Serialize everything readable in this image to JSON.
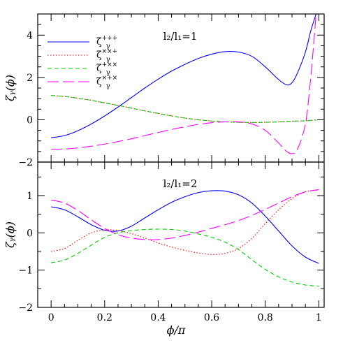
{
  "chart_data": [
    {
      "type": "line",
      "panel": "top",
      "annotation": "l₂/l₁=1",
      "xlabel": "",
      "ylabel": "ζᵧ(ϕ)",
      "xlim": [
        -0.05,
        1.02
      ],
      "ylim": [
        -2,
        5
      ],
      "yticks": [
        -2,
        0,
        2,
        4
      ],
      "ytick_labels": [
        "−2",
        "0",
        "2",
        "4"
      ],
      "legend_placement": "top-left",
      "x": [
        0,
        0.05,
        0.1,
        0.15,
        0.2,
        0.25,
        0.3,
        0.35,
        0.4,
        0.45,
        0.5,
        0.55,
        0.6,
        0.65,
        0.7,
        0.75,
        0.8,
        0.85,
        0.88,
        0.9,
        0.92,
        0.95,
        0.97,
        0.99
      ],
      "series": [
        {
          "name": "ζᵧ⁺⁺⁺",
          "color": "#0000ff",
          "dash": "solid",
          "values": [
            -0.85,
            -0.75,
            -0.52,
            -0.2,
            0.18,
            0.6,
            1.05,
            1.5,
            1.92,
            2.3,
            2.62,
            2.9,
            3.1,
            3.22,
            3.2,
            3.0,
            2.5,
            1.9,
            1.65,
            1.75,
            2.2,
            3.2,
            4.2,
            5.0
          ]
        },
        {
          "name": "ζᵧˣˣ⁺",
          "color": "#ff0000",
          "dash": "dotted",
          "values": [
            1.15,
            1.1,
            1.02,
            0.92,
            0.8,
            0.68,
            0.55,
            0.42,
            0.3,
            0.18,
            0.08,
            0.0,
            -0.06,
            -0.1,
            -0.12,
            -0.13,
            -0.12,
            -0.1,
            -0.08,
            -0.07,
            -0.06,
            -0.05,
            -0.03,
            -0.01
          ]
        },
        {
          "name": "ζᵧ⁺ˣˣ",
          "color": "#00cc00",
          "dash": "dashed",
          "values": [
            1.15,
            1.1,
            1.02,
            0.92,
            0.8,
            0.68,
            0.55,
            0.42,
            0.3,
            0.18,
            0.08,
            0.0,
            -0.06,
            -0.1,
            -0.12,
            -0.13,
            -0.12,
            -0.1,
            -0.08,
            -0.07,
            -0.06,
            -0.05,
            -0.03,
            -0.01
          ]
        },
        {
          "name": "ζᵧˣ⁺ˣ",
          "color": "#ff00ff",
          "dash": "longdash",
          "values": [
            -1.4,
            -1.38,
            -1.33,
            -1.25,
            -1.15,
            -1.03,
            -0.9,
            -0.75,
            -0.6,
            -0.46,
            -0.33,
            -0.22,
            -0.14,
            -0.1,
            -0.1,
            -0.2,
            -0.5,
            -1.1,
            -1.5,
            -1.6,
            -1.4,
            -0.2,
            2.0,
            5.0
          ]
        }
      ]
    },
    {
      "type": "line",
      "panel": "bottom",
      "annotation": "l₂/l₁=2",
      "xlabel": "ϕ/π",
      "ylabel": "ζᵧ(ϕ)",
      "xlim": [
        -0.05,
        1.02
      ],
      "ylim": [
        -2,
        1.9
      ],
      "xticks": [
        0,
        0.2,
        0.4,
        0.6,
        0.8,
        1
      ],
      "xtick_labels": [
        "0",
        "0.2",
        "0.4",
        "0.6",
        "0.8",
        "1"
      ],
      "yticks": [
        -2,
        -1,
        0,
        1
      ],
      "ytick_labels": [
        "−2",
        "−1",
        "0",
        "1"
      ],
      "x": [
        0,
        0.05,
        0.1,
        0.15,
        0.2,
        0.25,
        0.3,
        0.35,
        0.4,
        0.45,
        0.5,
        0.55,
        0.6,
        0.65,
        0.7,
        0.75,
        0.8,
        0.85,
        0.9,
        0.95,
        1.0
      ],
      "series": [
        {
          "name": "ζᵧ⁺⁺⁺",
          "color": "#0000ff",
          "dash": "solid",
          "values": [
            0.7,
            0.62,
            0.43,
            0.22,
            0.07,
            0.05,
            0.18,
            0.4,
            0.62,
            0.82,
            0.97,
            1.08,
            1.13,
            1.12,
            1.02,
            0.8,
            0.45,
            0.05,
            -0.35,
            -0.65,
            -0.82
          ]
        },
        {
          "name": "ζᵧˣˣ⁺",
          "color": "#ff0000",
          "dash": "dotted",
          "values": [
            -0.5,
            -0.42,
            -0.2,
            0.0,
            0.08,
            0.06,
            -0.02,
            -0.14,
            -0.27,
            -0.38,
            -0.47,
            -0.54,
            -0.58,
            -0.55,
            -0.42,
            -0.15,
            0.25,
            0.62,
            0.92,
            1.1,
            1.15
          ]
        },
        {
          "name": "ζᵧ⁺ˣˣ",
          "color": "#00cc00",
          "dash": "dashed",
          "values": [
            -0.8,
            -0.73,
            -0.55,
            -0.33,
            -0.12,
            0.0,
            0.06,
            0.09,
            0.1,
            0.09,
            0.05,
            -0.03,
            -0.12,
            -0.25,
            -0.45,
            -0.72,
            -0.98,
            -1.18,
            -1.32,
            -1.4,
            -1.43
          ]
        },
        {
          "name": "ζᵧˣ⁺ˣ",
          "color": "#ff00ff",
          "dash": "longdash",
          "values": [
            0.88,
            0.8,
            0.6,
            0.35,
            0.12,
            -0.05,
            -0.14,
            -0.18,
            -0.18,
            -0.14,
            -0.07,
            0.02,
            0.12,
            0.22,
            0.33,
            0.47,
            0.63,
            0.8,
            0.97,
            1.1,
            1.16
          ]
        }
      ]
    }
  ],
  "legend": [
    {
      "base": "ζ",
      "sup": "+++",
      "sub": "γ",
      "color": "#0000ff",
      "dash": "solid"
    },
    {
      "base": "ζ",
      "sup": "××+",
      "sub": "γ",
      "color": "#ff0000",
      "dash": "dotted"
    },
    {
      "base": "ζ",
      "sup": "+××",
      "sub": "γ",
      "color": "#00cc00",
      "dash": "dashed"
    },
    {
      "base": "ζ",
      "sup": "×+×",
      "sub": "γ",
      "color": "#ff00ff",
      "dash": "longdash"
    }
  ]
}
